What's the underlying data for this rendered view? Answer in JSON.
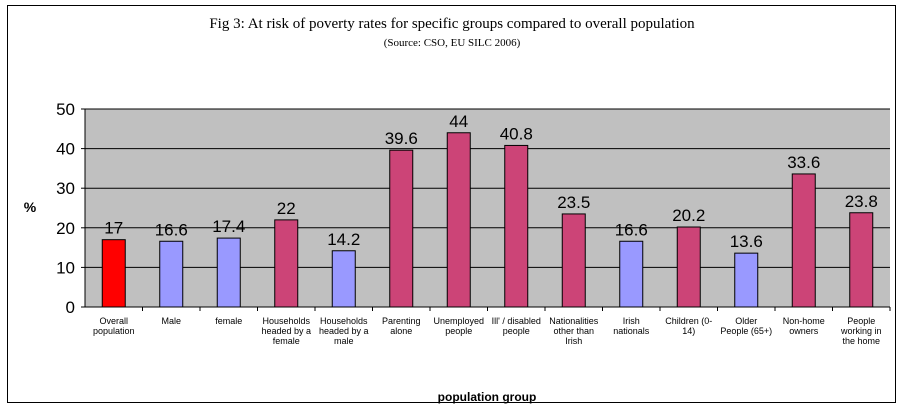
{
  "chart_data": {
    "type": "bar",
    "title": "Fig 3: At risk of poverty rates for specific groups compared to overall population",
    "subtitle": "(Source: CSO, EU SILC 2006)",
    "xlabel": "population group",
    "ylabel": "%",
    "ylim": [
      0,
      50
    ],
    "yticks": [
      "0",
      "10",
      "20",
      "30",
      "40",
      "50"
    ],
    "grid": true,
    "categories": [
      [
        "Overall",
        "population"
      ],
      [
        "Male"
      ],
      [
        "female"
      ],
      [
        "Households",
        "headed by a",
        "female"
      ],
      [
        "Households",
        "headed by a",
        "male"
      ],
      [
        "Parenting",
        "alone"
      ],
      [
        "Unemployed",
        "people"
      ],
      [
        "Ill' / disabled",
        "people"
      ],
      [
        "Nationalities",
        "other than",
        "Irish"
      ],
      [
        "Irish",
        "nationals"
      ],
      [
        "Children (0-",
        "14)"
      ],
      [
        "Older",
        "People (65+)"
      ],
      [
        "Non-home",
        "owners"
      ],
      [
        "People",
        "working in",
        "the home"
      ]
    ],
    "values": [
      17,
      16.6,
      17.4,
      22,
      14.2,
      39.6,
      44,
      40.8,
      23.5,
      16.6,
      20.2,
      13.6,
      33.6,
      23.8
    ],
    "value_labels": [
      "17",
      "16.6",
      "17.4",
      "22",
      "14.2",
      "39.6",
      "44",
      "40.8",
      "23.5",
      "16.6",
      "20.2",
      "13.6",
      "33.6",
      "23.8"
    ],
    "bar_colors": [
      "#ff0000",
      "#9999ff",
      "#9999ff",
      "#cc4477",
      "#9999ff",
      "#cc4477",
      "#cc4477",
      "#cc4477",
      "#cc4477",
      "#9999ff",
      "#cc4477",
      "#9999ff",
      "#cc4477",
      "#cc4477"
    ],
    "plot_background": "#c0c0c0"
  }
}
